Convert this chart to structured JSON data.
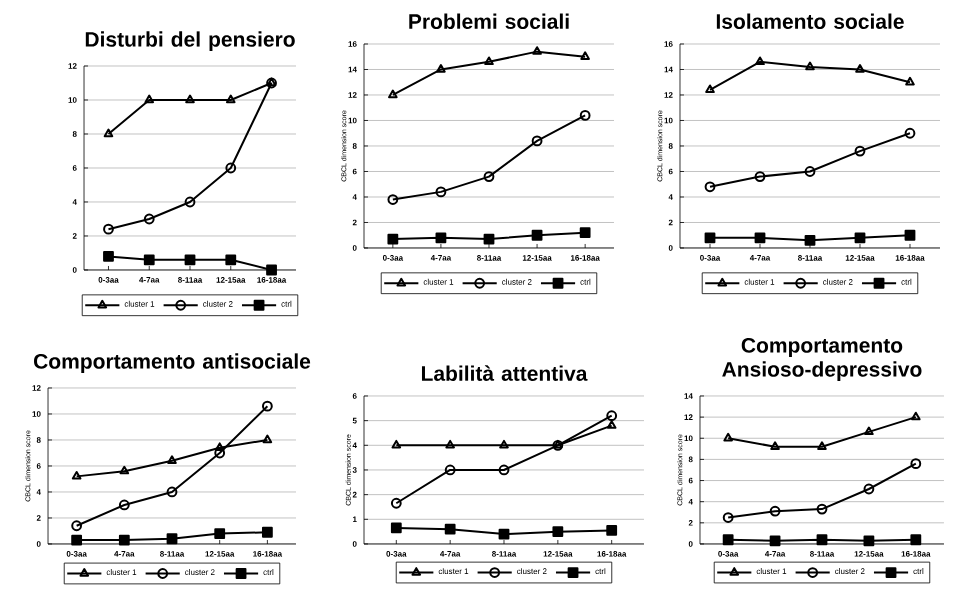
{
  "chart_data": [
    {
      "type": "line",
      "title": "Disturbi del pensiero",
      "categories": [
        "0-3aa",
        "4-7aa",
        "8-11aa",
        "12-15aa",
        "16-18aa"
      ],
      "ylim": [
        0,
        12
      ],
      "yticks": [
        0,
        2,
        4,
        6,
        8,
        10,
        12
      ],
      "grid": "y",
      "legend": "bottom",
      "series": [
        {
          "name": "cluster 1",
          "color": "#000000",
          "marker": "triangle",
          "values": [
            8,
            10,
            10,
            10,
            11
          ]
        },
        {
          "name": "cluster 2",
          "color": "#000000",
          "marker": "circle",
          "values": [
            2.4,
            3,
            4,
            6,
            11
          ]
        },
        {
          "name": "ctrl",
          "color": "#000000",
          "marker": "square",
          "values": [
            0.8,
            0.6,
            0.6,
            0.6,
            0
          ]
        }
      ]
    },
    {
      "type": "line",
      "title": "Problemi sociali",
      "ylabel": "CBCL dimension score",
      "categories": [
        "0-3aa",
        "4-7aa",
        "8-11aa",
        "12-15aa",
        "16-18aa"
      ],
      "ylim": [
        0,
        16
      ],
      "yticks": [
        0,
        2,
        4,
        6,
        8,
        10,
        12,
        14,
        16
      ],
      "grid": "y",
      "legend": "bottom",
      "series": [
        {
          "name": "cluster 1",
          "color": "#000000",
          "marker": "triangle",
          "values": [
            12,
            14,
            14.6,
            15.4,
            15
          ]
        },
        {
          "name": "cluster 2",
          "color": "#000000",
          "marker": "circle",
          "values": [
            3.8,
            4.4,
            5.6,
            8.4,
            10.4
          ]
        },
        {
          "name": "ctrl",
          "color": "#000000",
          "marker": "square",
          "values": [
            0.7,
            0.8,
            0.7,
            1.0,
            1.2
          ]
        }
      ]
    },
    {
      "type": "line",
      "title": "Isolamento sociale",
      "ylabel": "CBCL dimension score",
      "categories": [
        "0-3aa",
        "4-7aa",
        "8-11aa",
        "12-15aa",
        "16-18aa"
      ],
      "ylim": [
        0,
        16
      ],
      "yticks": [
        0,
        2,
        4,
        6,
        8,
        10,
        12,
        14,
        16
      ],
      "grid": "y",
      "legend": "bottom",
      "series": [
        {
          "name": "cluster 1",
          "color": "#000000",
          "marker": "triangle",
          "values": [
            12.4,
            14.6,
            14.2,
            14,
            13
          ]
        },
        {
          "name": "cluster 2",
          "color": "#000000",
          "marker": "circle",
          "values": [
            4.8,
            5.6,
            6,
            7.6,
            9
          ]
        },
        {
          "name": "ctrl",
          "color": "#000000",
          "marker": "square",
          "values": [
            0.8,
            0.8,
            0.6,
            0.8,
            1.0
          ]
        }
      ]
    },
    {
      "type": "line",
      "title": "Comportamento antisociale",
      "ylabel": "CBCL dimension score",
      "categories": [
        "0-3aa",
        "4-7aa",
        "8-11aa",
        "12-15aa",
        "16-18aa"
      ],
      "ylim": [
        0,
        12
      ],
      "yticks": [
        0,
        2,
        4,
        6,
        8,
        10,
        12
      ],
      "grid": "y",
      "legend": "bottom",
      "series": [
        {
          "name": "cluster 1",
          "color": "#000000",
          "marker": "triangle",
          "values": [
            5.2,
            5.6,
            6.4,
            7.4,
            8
          ]
        },
        {
          "name": "cluster 2",
          "color": "#000000",
          "marker": "circle",
          "values": [
            1.4,
            3,
            4,
            7,
            10.6
          ]
        },
        {
          "name": "ctrl",
          "color": "#000000",
          "marker": "square",
          "values": [
            0.3,
            0.3,
            0.4,
            0.8,
            0.9
          ]
        }
      ]
    },
    {
      "type": "line",
      "title": "Labilità attentiva",
      "ylabel": "CBCL dimension score",
      "categories": [
        "0-3aa",
        "4-7aa",
        "8-11aa",
        "12-15aa",
        "16-18aa"
      ],
      "ylim": [
        0,
        6
      ],
      "yticks": [
        0,
        1,
        2,
        3,
        4,
        5,
        6
      ],
      "grid": "y",
      "legend": "bottom",
      "series": [
        {
          "name": "cluster 1",
          "color": "#000000",
          "marker": "triangle",
          "values": [
            4,
            4,
            4,
            4,
            4.8
          ]
        },
        {
          "name": "cluster 2",
          "color": "#000000",
          "marker": "circle",
          "values": [
            1.65,
            3,
            3,
            4,
            5.2
          ]
        },
        {
          "name": "ctrl",
          "color": "#000000",
          "marker": "square",
          "values": [
            0.65,
            0.6,
            0.4,
            0.5,
            0.55
          ]
        }
      ]
    },
    {
      "type": "line",
      "title": "Comportamento Ansioso-depressivo",
      "ylabel": "CBCL dimension score",
      "categories": [
        "0-3aa",
        "4-7aa",
        "8-11aa",
        "12-15aa",
        "16-18aa"
      ],
      "ylim": [
        0,
        14
      ],
      "yticks": [
        0,
        2,
        4,
        6,
        8,
        10,
        12,
        14
      ],
      "grid": "y",
      "legend": "bottom",
      "series": [
        {
          "name": "cluster 1",
          "color": "#000000",
          "marker": "triangle",
          "values": [
            10,
            9.2,
            9.2,
            10.6,
            12
          ]
        },
        {
          "name": "cluster 2",
          "color": "#000000",
          "marker": "circle",
          "values": [
            2.5,
            3.1,
            3.3,
            5.2,
            7.6
          ]
        },
        {
          "name": "ctrl",
          "color": "#000000",
          "marker": "square",
          "values": [
            0.4,
            0.3,
            0.4,
            0.3,
            0.4
          ]
        }
      ]
    }
  ]
}
